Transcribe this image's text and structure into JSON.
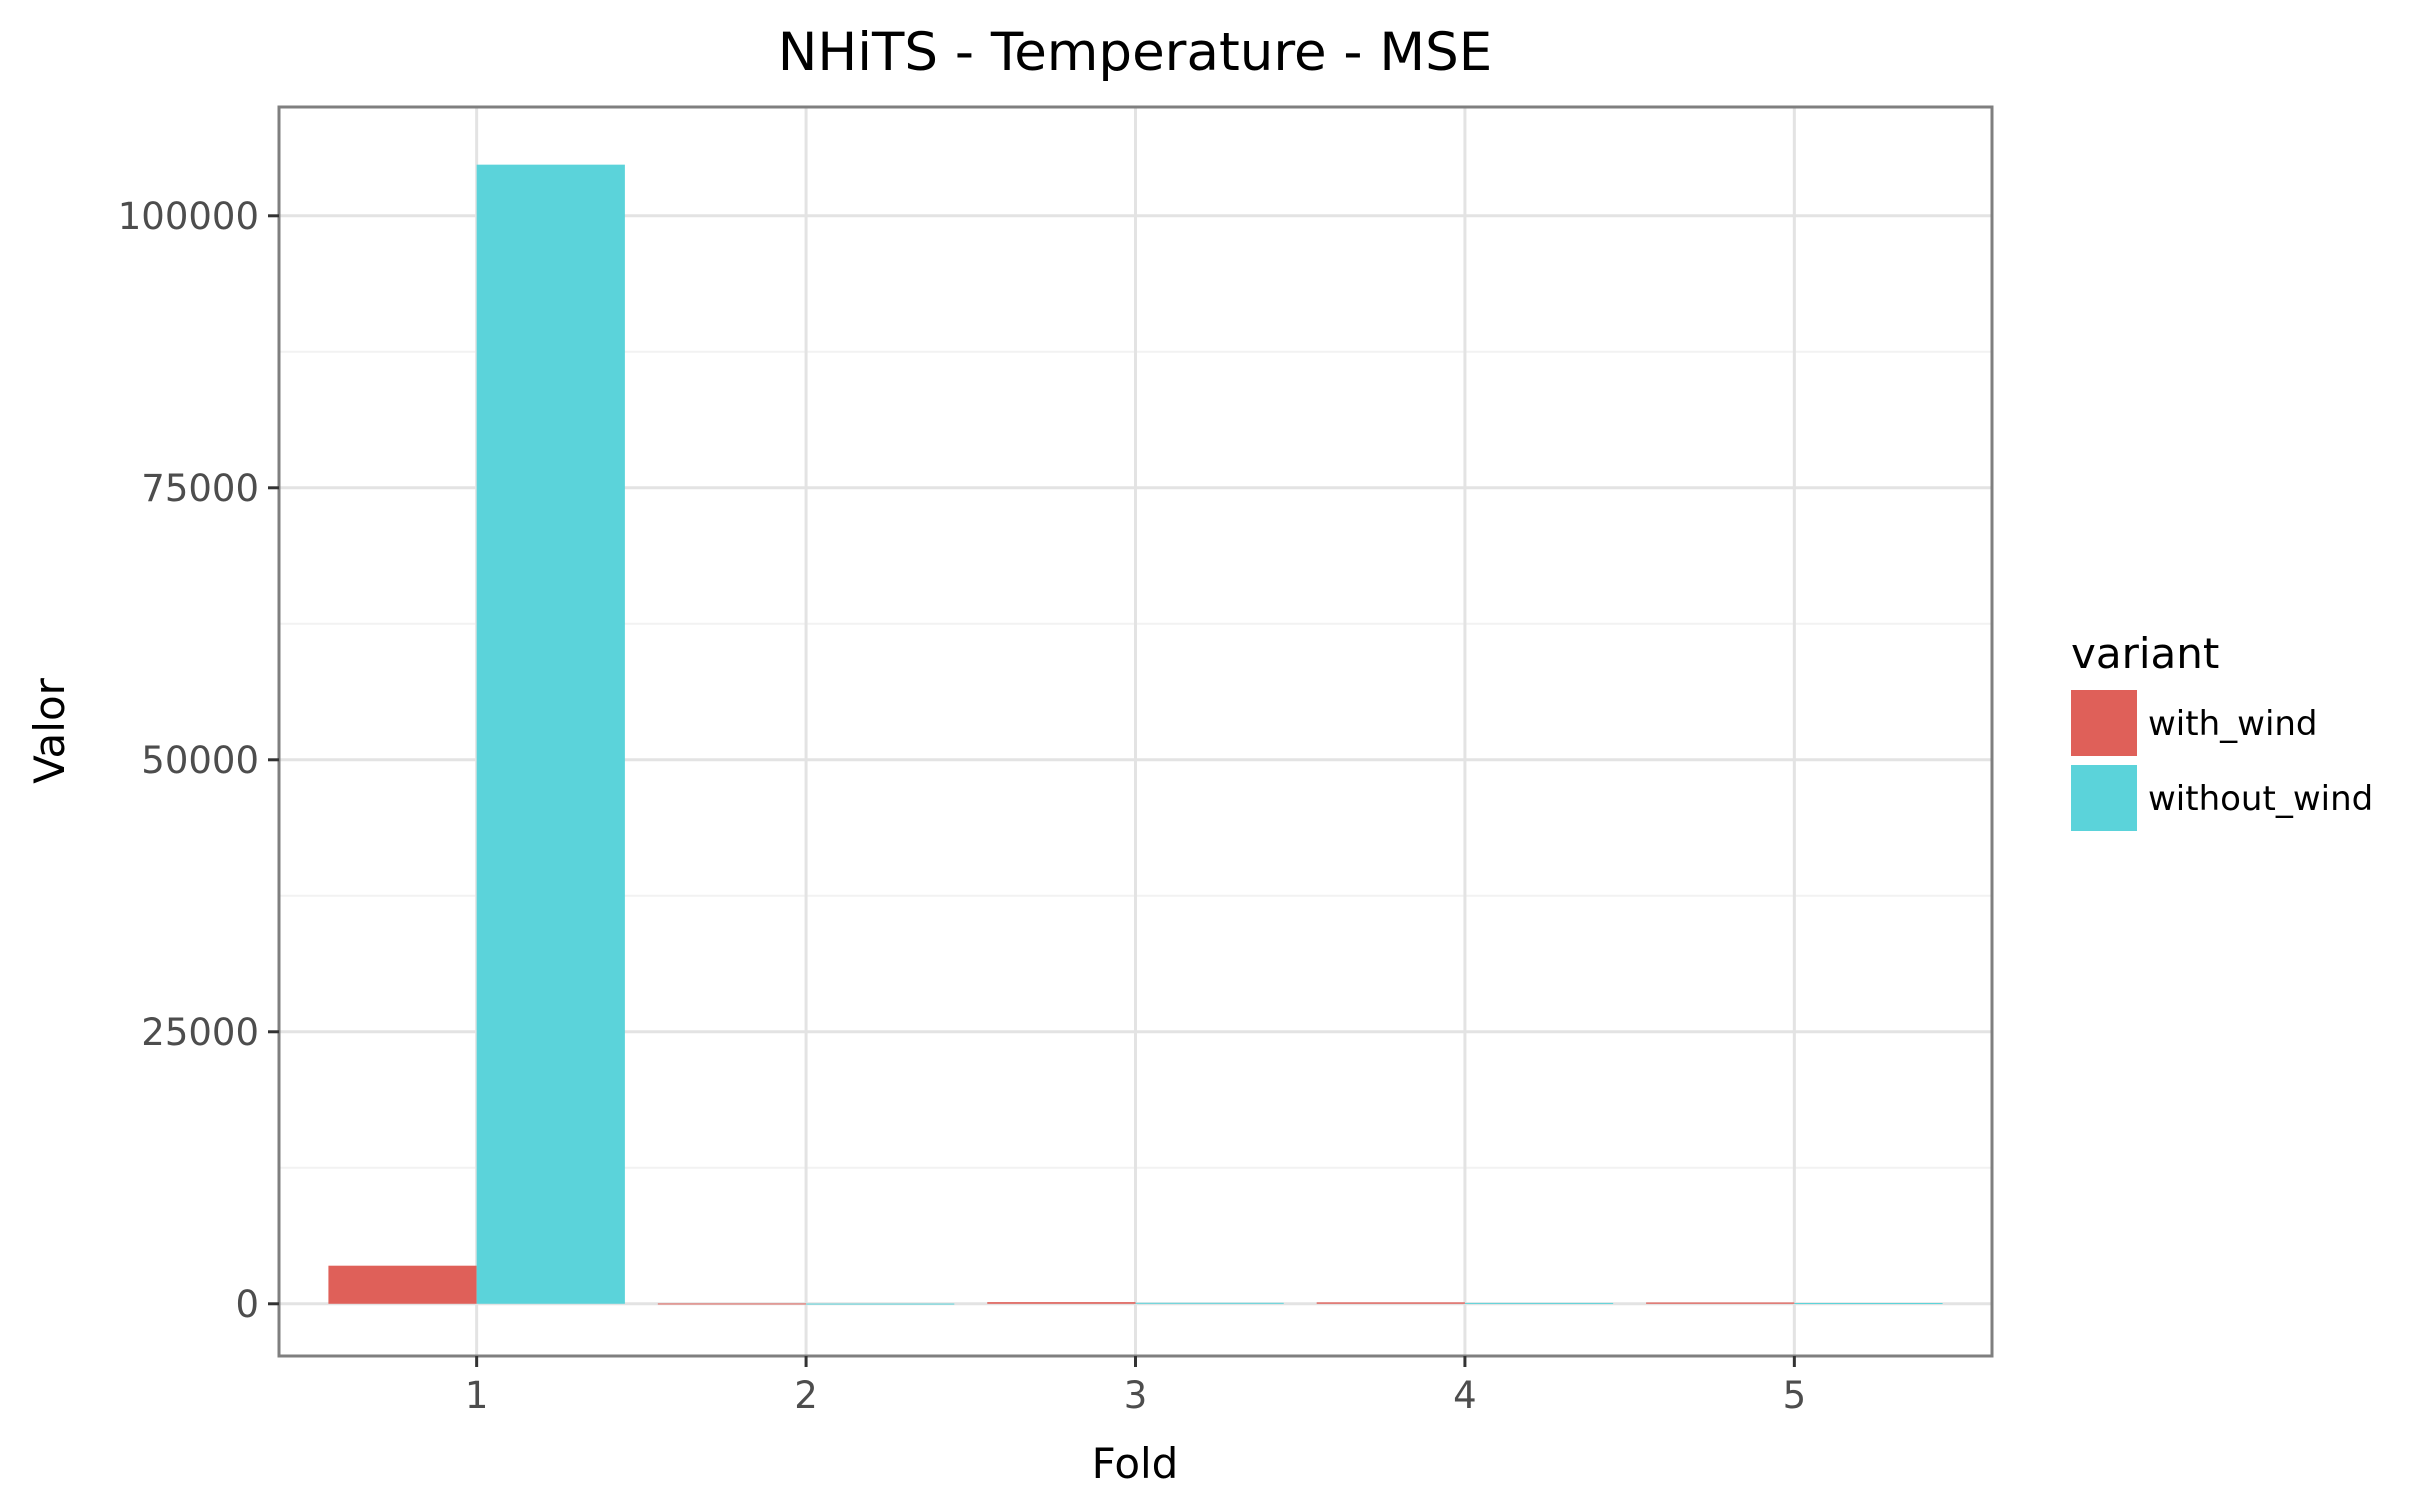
{
  "chart_data": {
    "type": "bar",
    "title": "NHiTS - Temperature - MSE",
    "xlabel": "Fold",
    "ylabel": "Valor",
    "categories": [
      "1",
      "2",
      "3",
      "4",
      "5"
    ],
    "series": [
      {
        "name": "with_wind",
        "color": "#df6059",
        "values": [
          3500,
          30,
          150,
          130,
          120
        ]
      },
      {
        "name": "without_wind",
        "color": "#5bd3da",
        "values": [
          104700,
          20,
          90,
          80,
          70
        ]
      }
    ],
    "ylim": [
      -4800,
      110000
    ],
    "yticks": [
      0,
      25000,
      50000,
      75000,
      100000
    ],
    "ytick_labels": [
      "0",
      "25000",
      "50000",
      "75000",
      "100000"
    ],
    "grid": true,
    "legend": {
      "title": "variant",
      "position": "right"
    }
  }
}
